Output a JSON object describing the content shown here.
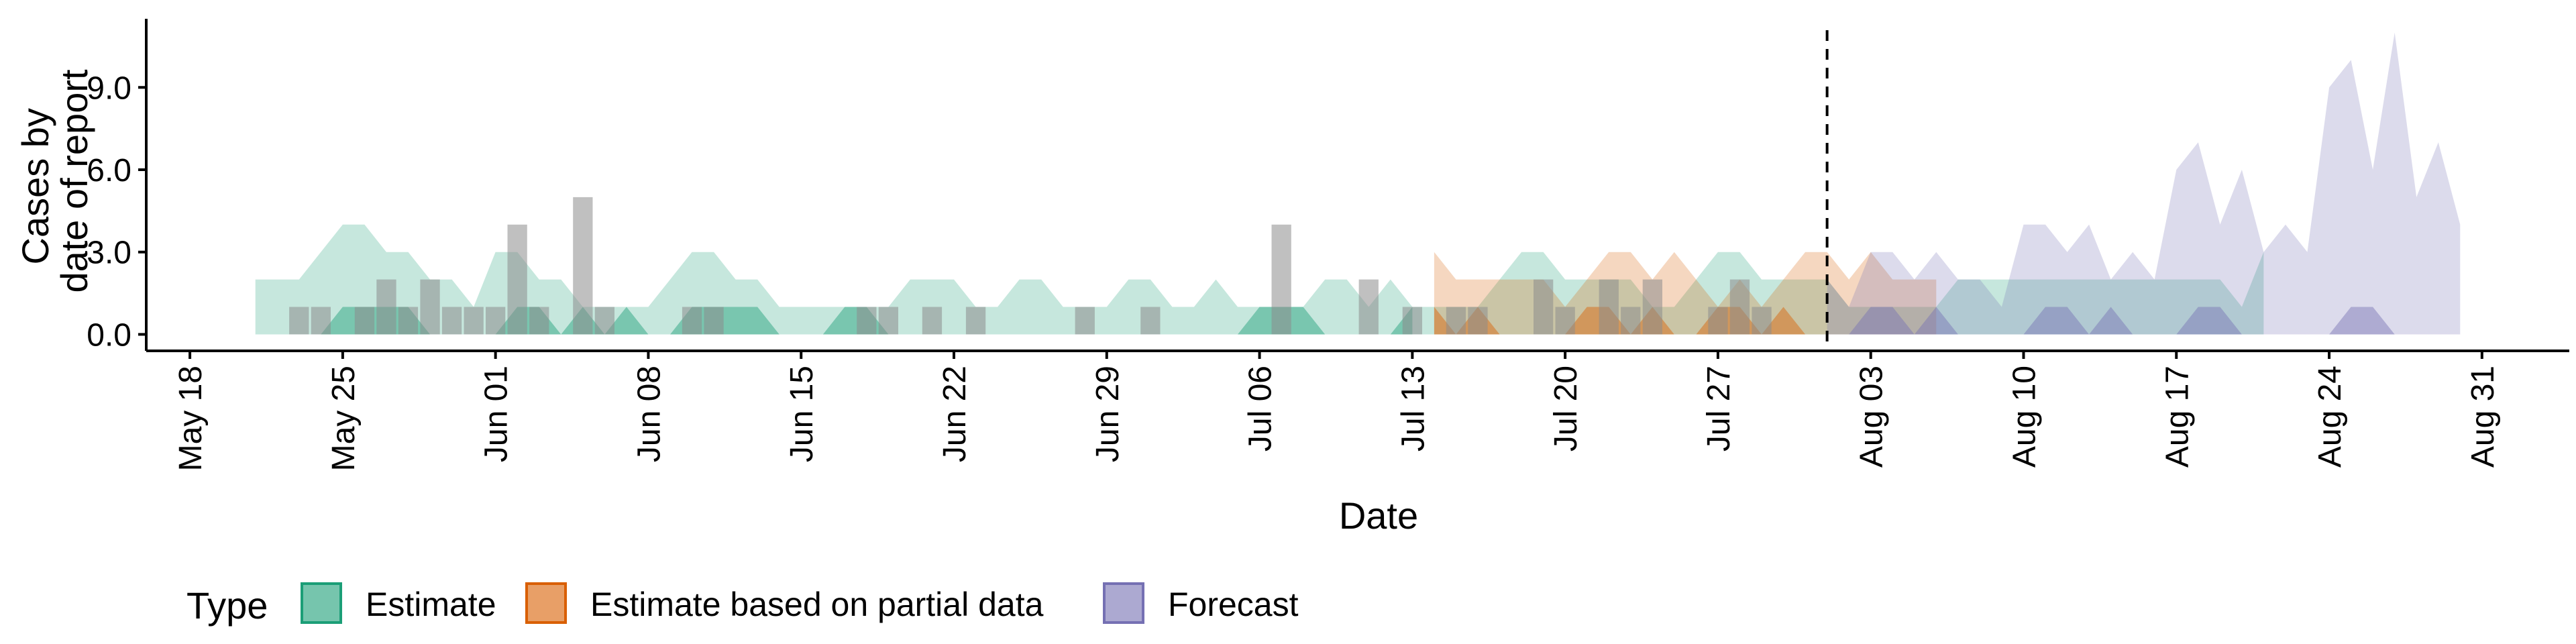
{
  "chart_data": {
    "type": "area",
    "title": "",
    "xlabel": "Date",
    "ylabel": [
      "Cases by",
      "date of report"
    ],
    "x_start": "2020-05-16",
    "x_end": "2020-09-04",
    "ylim": [
      -0.6,
      11.5
    ],
    "y_ticks": [
      0,
      3,
      6,
      9
    ],
    "y_tick_labels": [
      "0.0",
      "3.0",
      "6.0",
      "9.0"
    ],
    "x_ticks": [
      {
        "date": "2020-05-18",
        "label": "May 18"
      },
      {
        "date": "2020-05-25",
        "label": "May 25"
      },
      {
        "date": "2020-06-01",
        "label": "Jun 01"
      },
      {
        "date": "2020-06-08",
        "label": "Jun 08"
      },
      {
        "date": "2020-06-15",
        "label": "Jun 15"
      },
      {
        "date": "2020-06-22",
        "label": "Jun 22"
      },
      {
        "date": "2020-06-29",
        "label": "Jun 29"
      },
      {
        "date": "2020-07-06",
        "label": "Jul 06"
      },
      {
        "date": "2020-07-13",
        "label": "Jul 13"
      },
      {
        "date": "2020-07-20",
        "label": "Jul 20"
      },
      {
        "date": "2020-07-27",
        "label": "Jul 27"
      },
      {
        "date": "2020-08-03",
        "label": "Aug 03"
      },
      {
        "date": "2020-08-10",
        "label": "Aug 10"
      },
      {
        "date": "2020-08-17",
        "label": "Aug 17"
      },
      {
        "date": "2020-08-24",
        "label": "Aug 24"
      },
      {
        "date": "2020-08-31",
        "label": "Aug 31"
      }
    ],
    "vline_date": "2020-08-01",
    "series": [
      {
        "name": "Estimate",
        "color": "#1b9e77",
        "start": "2020-05-21",
        "upper": [
          2,
          2,
          2,
          3,
          4,
          4,
          3,
          3,
          2,
          2,
          1,
          3,
          3,
          2,
          2,
          1,
          1,
          1,
          1,
          2,
          3,
          3,
          2,
          2,
          1,
          1,
          1,
          1,
          1,
          1,
          2,
          2,
          2,
          1,
          1,
          2,
          2,
          1,
          1,
          1,
          2,
          2,
          1,
          1,
          2,
          1,
          1,
          1,
          1,
          2,
          2,
          1,
          2,
          1,
          1,
          1,
          1,
          2,
          3,
          3,
          2,
          2,
          2,
          2,
          1,
          1,
          2,
          3,
          3,
          2,
          2,
          2,
          2,
          1,
          1,
          1,
          1,
          1,
          2,
          2,
          2,
          2,
          2,
          2,
          2,
          2,
          2,
          2,
          2,
          2,
          2,
          1,
          3
        ],
        "inner": [
          {
            "start": "2020-05-24",
            "values": [
              0,
              1,
              1,
              1,
              1,
              0
            ]
          },
          {
            "start": "2020-06-01",
            "values": [
              0,
              1,
              1,
              0
            ]
          },
          {
            "start": "2020-06-04",
            "values": [
              0,
              1,
              0,
              1,
              0
            ]
          },
          {
            "start": "2020-06-09",
            "values": [
              0,
              1,
              1,
              1,
              1,
              0
            ]
          },
          {
            "start": "2020-06-16",
            "values": [
              0,
              1,
              1,
              0
            ]
          },
          {
            "start": "2020-07-05",
            "values": [
              0,
              1,
              1,
              1,
              0
            ]
          },
          {
            "start": "2020-07-12",
            "values": [
              0,
              1
            ]
          }
        ]
      },
      {
        "name": "Estimate based on partial data",
        "color": "#d95f02",
        "start": "2020-07-14",
        "upper": [
          3,
          2,
          2,
          2,
          2,
          2,
          1,
          2,
          3,
          3,
          2,
          3,
          2,
          1,
          2,
          1,
          2,
          3,
          3,
          2,
          3,
          2,
          2,
          2
        ],
        "inner": [
          {
            "start": "2020-07-14",
            "values": [
              1,
              0,
              1,
              0
            ]
          },
          {
            "start": "2020-07-20",
            "values": [
              0,
              1,
              1,
              0,
              1,
              0
            ]
          },
          {
            "start": "2020-07-26",
            "values": [
              0,
              1,
              1,
              0,
              1,
              0
            ]
          }
        ]
      },
      {
        "name": "Forecast",
        "color": "#7570b3",
        "start": "2020-08-01",
        "upper": [
          2,
          1,
          3,
          3,
          2,
          3,
          2,
          2,
          1,
          4,
          4,
          3,
          4,
          2,
          3,
          2,
          6,
          7,
          4,
          6,
          3,
          4,
          3,
          9,
          10,
          6,
          11,
          5,
          7,
          4
        ],
        "inner": [
          {
            "start": "2020-08-02",
            "values": [
              0,
              1,
              1,
              0,
              1,
              0
            ]
          },
          {
            "start": "2020-08-10",
            "values": [
              0,
              1,
              1,
              0,
              1,
              0
            ]
          },
          {
            "start": "2020-08-17",
            "values": [
              0,
              1,
              1,
              0
            ]
          },
          {
            "start": "2020-08-24",
            "values": [
              0,
              1,
              1,
              0
            ]
          }
        ]
      }
    ],
    "bars": [
      {
        "date": "2020-05-23",
        "value": 1
      },
      {
        "date": "2020-05-24",
        "value": 1
      },
      {
        "date": "2020-05-26",
        "value": 1
      },
      {
        "date": "2020-05-27",
        "value": 2
      },
      {
        "date": "2020-05-28",
        "value": 1
      },
      {
        "date": "2020-05-29",
        "value": 2
      },
      {
        "date": "2020-05-30",
        "value": 1
      },
      {
        "date": "2020-05-31",
        "value": 1
      },
      {
        "date": "2020-06-01",
        "value": 1
      },
      {
        "date": "2020-06-02",
        "value": 4
      },
      {
        "date": "2020-06-03",
        "value": 1
      },
      {
        "date": "2020-06-05",
        "value": 5
      },
      {
        "date": "2020-06-06",
        "value": 1
      },
      {
        "date": "2020-06-10",
        "value": 1
      },
      {
        "date": "2020-06-11",
        "value": 1
      },
      {
        "date": "2020-06-18",
        "value": 1
      },
      {
        "date": "2020-06-19",
        "value": 1
      },
      {
        "date": "2020-06-21",
        "value": 1
      },
      {
        "date": "2020-06-23",
        "value": 1
      },
      {
        "date": "2020-06-28",
        "value": 1
      },
      {
        "date": "2020-07-01",
        "value": 1
      },
      {
        "date": "2020-07-07",
        "value": 4
      },
      {
        "date": "2020-07-11",
        "value": 2
      },
      {
        "date": "2020-07-13",
        "value": 1
      },
      {
        "date": "2020-07-15",
        "value": 1
      },
      {
        "date": "2020-07-16",
        "value": 1
      },
      {
        "date": "2020-07-19",
        "value": 2
      },
      {
        "date": "2020-07-20",
        "value": 1
      },
      {
        "date": "2020-07-22",
        "value": 2
      },
      {
        "date": "2020-07-23",
        "value": 1
      },
      {
        "date": "2020-07-24",
        "value": 2
      },
      {
        "date": "2020-07-27",
        "value": 1
      },
      {
        "date": "2020-07-28",
        "value": 2
      },
      {
        "date": "2020-07-29",
        "value": 1
      }
    ],
    "legend": {
      "title": "Type",
      "position": "bottom",
      "entries": [
        "Estimate",
        "Estimate based on partial data",
        "Forecast"
      ]
    }
  }
}
